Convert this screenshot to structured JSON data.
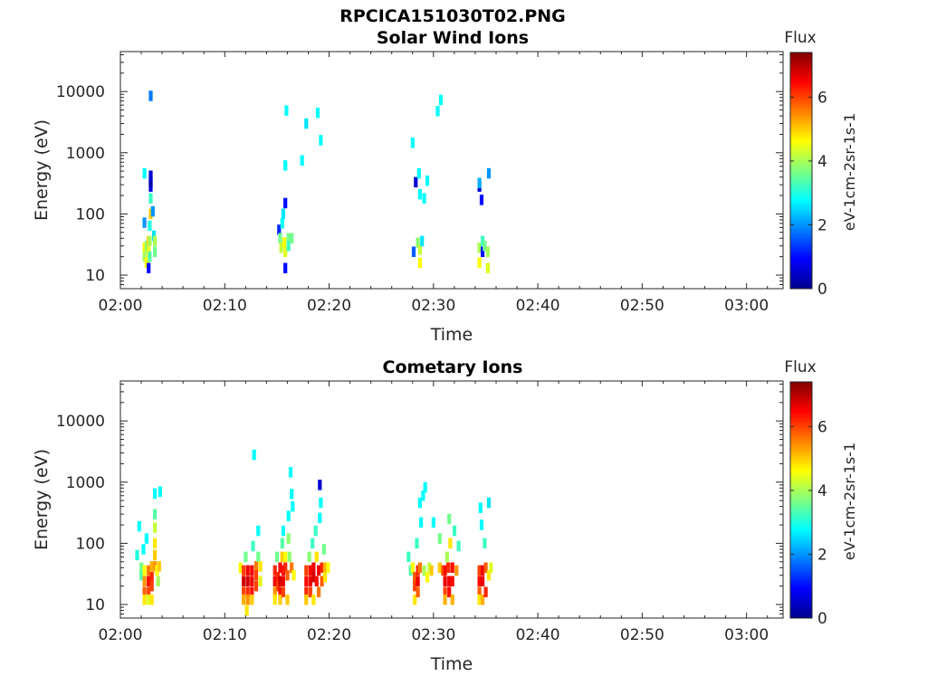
{
  "figure": {
    "title": "RPCICA151030T02.PNG"
  },
  "chart_data": [
    {
      "type": "heatmap",
      "title": "Solar Wind Ions",
      "xlabel": "Time",
      "ylabel": "Energy (eV)",
      "x_ticks": [
        "02:00",
        "02:10",
        "02:20",
        "02:30",
        "02:40",
        "02:50",
        "03:00"
      ],
      "xlim_minutes": [
        0,
        63.5
      ],
      "y_scale": "log",
      "y_ticks": [
        10,
        100,
        1000,
        10000
      ],
      "y_tick_labels": [
        "10",
        "100",
        "1000",
        "10000"
      ],
      "ylim": [
        6,
        45000
      ],
      "colorbar": {
        "title": "Flux",
        "label": "eV-1cm-2sr-1s-1",
        "ticks": [
          0,
          2,
          4,
          6
        ],
        "range": [
          0,
          7.4
        ],
        "colormap": "jet"
      },
      "cells": [
        [
          2.3,
          72,
          2.0
        ],
        [
          2.3,
          28,
          4.6
        ],
        [
          2.3,
          20,
          4.0
        ],
        [
          2.5,
          30,
          3.8
        ],
        [
          2.5,
          16,
          4.6
        ],
        [
          2.7,
          36,
          5.0
        ],
        [
          2.7,
          24,
          4.4
        ],
        [
          2.7,
          13,
          1.0
        ],
        [
          2.8,
          64,
          3.0
        ],
        [
          2.8,
          36,
          4.0
        ],
        [
          2.8,
          20,
          3.4
        ],
        [
          2.9,
          100,
          5.0
        ],
        [
          2.9,
          180,
          3.2
        ],
        [
          2.9,
          280,
          0.7
        ],
        [
          2.9,
          330,
          0.3
        ],
        [
          3.1,
          110,
          2.0
        ],
        [
          3.2,
          44,
          2.6
        ],
        [
          3.3,
          36,
          4.0
        ],
        [
          3.3,
          24,
          3.6
        ],
        [
          2.3,
          460,
          2.8
        ],
        [
          2.9,
          8500,
          1.8
        ],
        [
          2.9,
          420,
          0.6
        ],
        [
          15.2,
          55,
          1.2
        ],
        [
          15.3,
          40,
          3.6
        ],
        [
          15.4,
          28,
          4.2
        ],
        [
          15.5,
          70,
          2.8
        ],
        [
          15.6,
          100,
          2.6
        ],
        [
          15.7,
          34,
          4.6
        ],
        [
          15.8,
          24,
          4.4
        ],
        [
          15.8,
          13,
          1.0
        ],
        [
          16.1,
          40,
          3.6
        ],
        [
          16.1,
          30,
          3.2
        ],
        [
          16.4,
          40,
          3.6
        ],
        [
          15.8,
          150,
          1.0
        ],
        [
          15.8,
          620,
          2.8
        ],
        [
          15.9,
          4900,
          2.8
        ],
        [
          17.4,
          750,
          2.8
        ],
        [
          17.8,
          3000,
          2.6
        ],
        [
          18.9,
          4500,
          2.8
        ],
        [
          19.2,
          1600,
          2.8
        ],
        [
          28.1,
          24,
          1.6
        ],
        [
          28.5,
          34,
          3.8
        ],
        [
          28.7,
          26,
          4.2
        ],
        [
          28.7,
          16,
          4.6
        ],
        [
          28.9,
          36,
          2.6
        ],
        [
          28.0,
          1450,
          2.8
        ],
        [
          28.3,
          330,
          0.6
        ],
        [
          28.6,
          460,
          2.8
        ],
        [
          28.7,
          210,
          2.8
        ],
        [
          29.1,
          180,
          2.8
        ],
        [
          29.4,
          350,
          2.8
        ],
        [
          30.4,
          4800,
          2.8
        ],
        [
          30.7,
          7300,
          2.8
        ],
        [
          34.4,
          28,
          4.0
        ],
        [
          34.4,
          16,
          4.6
        ],
        [
          34.7,
          36,
          3.2
        ],
        [
          34.7,
          24,
          1.0
        ],
        [
          34.9,
          30,
          3.6
        ],
        [
          35.2,
          24,
          4.0
        ],
        [
          35.2,
          13,
          4.4
        ],
        [
          34.4,
          280,
          0.6
        ],
        [
          34.4,
          320,
          2.2
        ],
        [
          34.6,
          170,
          1.0
        ],
        [
          35.3,
          460,
          2.0
        ]
      ]
    },
    {
      "type": "heatmap",
      "title": "Cometary Ions",
      "xlabel": "Time",
      "ylabel": "Energy (eV)",
      "x_ticks": [
        "02:00",
        "02:10",
        "02:20",
        "02:30",
        "02:40",
        "02:50",
        "03:00"
      ],
      "xlim_minutes": [
        0,
        63.5
      ],
      "y_scale": "log",
      "y_ticks": [
        10,
        100,
        1000,
        10000
      ],
      "y_tick_labels": [
        "10",
        "100",
        "1000",
        "10000"
      ],
      "ylim": [
        6,
        45000
      ],
      "colorbar": {
        "title": "Flux",
        "label": "eV-1cm-2sr-1s-1",
        "ticks": [
          0,
          2,
          4,
          6
        ],
        "range": [
          0,
          7.4
        ],
        "colormap": "jet"
      },
      "cells": [
        [
          1.6,
          64,
          3.0
        ],
        [
          1.8,
          190,
          2.8
        ],
        [
          2.0,
          40,
          3.6
        ],
        [
          2.0,
          30,
          3.4
        ],
        [
          2.2,
          80,
          2.8
        ],
        [
          2.3,
          36,
          4.6
        ],
        [
          2.3,
          24,
          5.4
        ],
        [
          2.3,
          16,
          5.8
        ],
        [
          2.3,
          12,
          4.8
        ],
        [
          2.5,
          120,
          2.8
        ],
        [
          2.7,
          36,
          5.6
        ],
        [
          2.7,
          24,
          6.4
        ],
        [
          2.7,
          16,
          6.0
        ],
        [
          2.7,
          12,
          4.4
        ],
        [
          3.0,
          42,
          5.2
        ],
        [
          3.0,
          28,
          6.2
        ],
        [
          3.0,
          20,
          6.0
        ],
        [
          3.0,
          12,
          4.8
        ],
        [
          3.3,
          42,
          5.4
        ],
        [
          3.3,
          64,
          5.0
        ],
        [
          3.3,
          100,
          4.8
        ],
        [
          3.3,
          180,
          4.2
        ],
        [
          3.3,
          300,
          3.4
        ],
        [
          3.3,
          650,
          2.8
        ],
        [
          3.5,
          36,
          4.6
        ],
        [
          3.7,
          42,
          5.0
        ],
        [
          3.8,
          700,
          2.8
        ],
        [
          3.6,
          24,
          4.0
        ],
        [
          11.5,
          40,
          4.6
        ],
        [
          11.8,
          36,
          6.0
        ],
        [
          11.8,
          24,
          6.8
        ],
        [
          11.8,
          16,
          6.0
        ],
        [
          11.8,
          12,
          5.2
        ],
        [
          12.0,
          60,
          3.6
        ],
        [
          12.1,
          8,
          4.8
        ],
        [
          12.2,
          36,
          6.6
        ],
        [
          12.2,
          24,
          6.8
        ],
        [
          12.2,
          16,
          6.2
        ],
        [
          12.2,
          12,
          5.4
        ],
        [
          12.6,
          36,
          6.6
        ],
        [
          12.6,
          24,
          6.6
        ],
        [
          12.6,
          16,
          6.4
        ],
        [
          12.6,
          12,
          5.0
        ],
        [
          12.7,
          90,
          3.2
        ],
        [
          12.8,
          2800,
          2.8
        ],
        [
          13.0,
          42,
          5.6
        ],
        [
          13.0,
          30,
          6.0
        ],
        [
          13.0,
          20,
          6.0
        ],
        [
          13.2,
          160,
          2.8
        ],
        [
          13.2,
          60,
          3.6
        ],
        [
          13.4,
          42,
          4.8
        ],
        [
          13.4,
          24,
          4.4
        ],
        [
          14.8,
          36,
          6.2
        ],
        [
          14.8,
          24,
          6.6
        ],
        [
          14.8,
          16,
          5.4
        ],
        [
          14.8,
          12,
          4.8
        ],
        [
          15.0,
          60,
          3.6
        ],
        [
          15.1,
          28,
          6.2
        ],
        [
          15.1,
          20,
          6.0
        ],
        [
          15.3,
          40,
          6.4
        ],
        [
          15.3,
          24,
          6.8
        ],
        [
          15.3,
          16,
          6.4
        ],
        [
          15.3,
          12,
          5.0
        ],
        [
          15.5,
          100,
          3.4
        ],
        [
          15.5,
          60,
          5.0
        ],
        [
          15.6,
          160,
          2.8
        ],
        [
          15.6,
          36,
          6.4
        ],
        [
          15.6,
          24,
          6.6
        ],
        [
          15.6,
          16,
          6.0
        ],
        [
          15.8,
          60,
          4.6
        ],
        [
          15.8,
          40,
          6.2
        ],
        [
          16.0,
          30,
          5.8
        ],
        [
          16.0,
          12,
          5.0
        ],
        [
          16.1,
          120,
          3.8
        ],
        [
          16.1,
          280,
          2.8
        ],
        [
          16.2,
          60,
          3.8
        ],
        [
          16.3,
          1450,
          2.8
        ],
        [
          16.4,
          40,
          5.6
        ],
        [
          16.4,
          640,
          2.8
        ],
        [
          16.5,
          400,
          2.8
        ],
        [
          16.6,
          30,
          4.6
        ],
        [
          17.8,
          36,
          6.0
        ],
        [
          17.8,
          24,
          6.4
        ],
        [
          17.8,
          16,
          6.2
        ],
        [
          17.8,
          12,
          5.0
        ],
        [
          18.1,
          60,
          3.8
        ],
        [
          18.2,
          36,
          6.4
        ],
        [
          18.2,
          24,
          6.6
        ],
        [
          18.2,
          16,
          6.0
        ],
        [
          18.4,
          100,
          3.2
        ],
        [
          18.5,
          40,
          6.6
        ],
        [
          18.5,
          28,
          6.8
        ],
        [
          18.5,
          12,
          4.8
        ],
        [
          18.7,
          160,
          3.2
        ],
        [
          18.8,
          60,
          4.8
        ],
        [
          18.8,
          24,
          6.4
        ],
        [
          19.0,
          36,
          6.6
        ],
        [
          19.0,
          16,
          5.6
        ],
        [
          19.1,
          900,
          0.6
        ],
        [
          19.1,
          260,
          2.8
        ],
        [
          19.2,
          460,
          2.8
        ],
        [
          19.3,
          40,
          6.2
        ],
        [
          19.3,
          24,
          5.8
        ],
        [
          19.5,
          80,
          3.6
        ],
        [
          19.6,
          40,
          5.2
        ],
        [
          19.6,
          28,
          4.8
        ],
        [
          19.9,
          40,
          4.6
        ],
        [
          27.6,
          60,
          3.2
        ],
        [
          27.8,
          36,
          3.4
        ],
        [
          28.0,
          40,
          4.6
        ],
        [
          28.2,
          28,
          5.8
        ],
        [
          28.2,
          20,
          6.0
        ],
        [
          28.2,
          12,
          4.8
        ],
        [
          28.4,
          100,
          3.2
        ],
        [
          28.5,
          36,
          6.2
        ],
        [
          28.5,
          24,
          6.6
        ],
        [
          28.5,
          16,
          5.8
        ],
        [
          28.7,
          40,
          5.6
        ],
        [
          28.7,
          460,
          2.8
        ],
        [
          28.8,
          220,
          2.8
        ],
        [
          29.0,
          600,
          2.8
        ],
        [
          29.1,
          36,
          4.0
        ],
        [
          29.2,
          820,
          2.8
        ],
        [
          29.4,
          28,
          4.6
        ],
        [
          29.6,
          40,
          4.2
        ],
        [
          29.8,
          36,
          5.0
        ],
        [
          30.0,
          220,
          2.8
        ],
        [
          30.6,
          40,
          5.0
        ],
        [
          30.6,
          120,
          3.6
        ],
        [
          30.9,
          36,
          5.8
        ],
        [
          31.1,
          36,
          6.4
        ],
        [
          31.1,
          24,
          6.6
        ],
        [
          31.1,
          16,
          6.0
        ],
        [
          31.1,
          12,
          5.2
        ],
        [
          31.3,
          60,
          4.0
        ],
        [
          31.4,
          40,
          6.2
        ],
        [
          31.5,
          24,
          6.6
        ],
        [
          31.5,
          16,
          6.4
        ],
        [
          31.5,
          250,
          3.6
        ],
        [
          31.6,
          100,
          4.8
        ],
        [
          31.8,
          40,
          6.4
        ],
        [
          31.8,
          24,
          6.4
        ],
        [
          31.8,
          12,
          5.2
        ],
        [
          32.0,
          160,
          3.2
        ],
        [
          32.2,
          36,
          5.4
        ],
        [
          32.4,
          90,
          3.2
        ],
        [
          34.4,
          36,
          6.0
        ],
        [
          34.4,
          24,
          6.4
        ],
        [
          34.4,
          16,
          5.8
        ],
        [
          34.4,
          12,
          4.8
        ],
        [
          34.5,
          380,
          2.8
        ],
        [
          34.6,
          200,
          2.8
        ],
        [
          34.7,
          36,
          6.6
        ],
        [
          34.7,
          24,
          6.6
        ],
        [
          34.7,
          12,
          5.2
        ],
        [
          34.9,
          100,
          3.2
        ],
        [
          35.0,
          40,
          5.8
        ],
        [
          35.0,
          16,
          6.2
        ],
        [
          35.3,
          30,
          4.8
        ],
        [
          35.3,
          460,
          2.6
        ],
        [
          35.5,
          40,
          4.4
        ]
      ]
    }
  ]
}
